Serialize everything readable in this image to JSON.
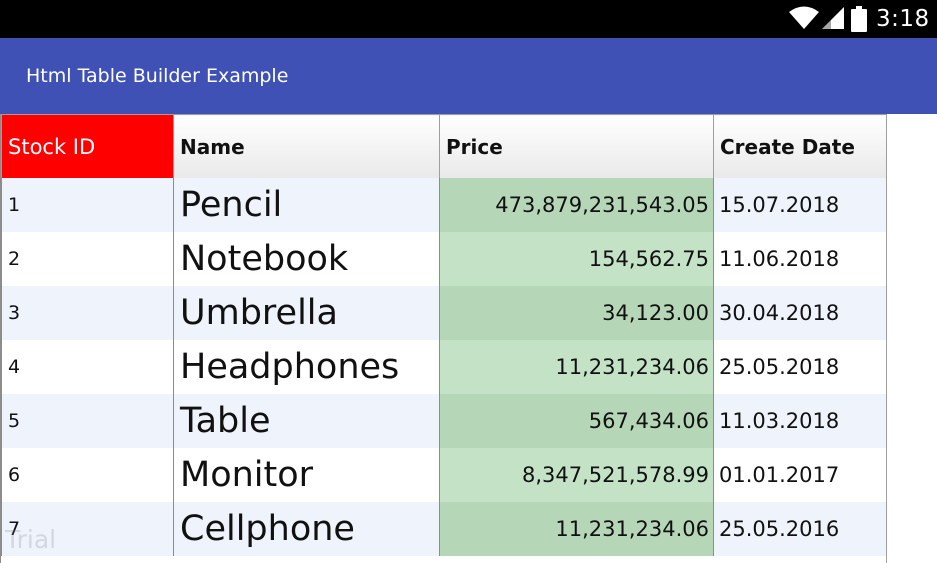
{
  "status_bar": {
    "time": "3:18",
    "icons": [
      "wifi-icon",
      "signal-icon",
      "battery-icon"
    ],
    "text_color": "#ffffff",
    "background": "#000000"
  },
  "app_bar": {
    "title": "Html Table Builder Example",
    "background": "#3F51B5"
  },
  "table": {
    "columns": [
      "Stock ID",
      "Name",
      "Price",
      "Create Date"
    ],
    "header_accent_color": "#ff0000",
    "price_column_color": "#b5d7b7",
    "row_stripe_color": "#eef3fc",
    "rows": [
      {
        "id": "1",
        "name": "Pencil",
        "price": "473,879,231,543.05",
        "date": "15.07.2018"
      },
      {
        "id": "2",
        "name": "Notebook",
        "price": "154,562.75",
        "date": "11.06.2018"
      },
      {
        "id": "3",
        "name": "Umbrella",
        "price": "34,123.00",
        "date": "30.04.2018"
      },
      {
        "id": "4",
        "name": "Headphones",
        "price": "11,231,234.06",
        "date": "25.05.2018"
      },
      {
        "id": "5",
        "name": "Table",
        "price": "567,434.06",
        "date": "11.03.2018"
      },
      {
        "id": "6",
        "name": "Monitor",
        "price": "8,347,521,578.99",
        "date": "01.01.2017"
      },
      {
        "id": "7",
        "name": "Cellphone",
        "price": "11,231,234.06",
        "date": "25.05.2016"
      }
    ]
  },
  "watermark": "Trial"
}
